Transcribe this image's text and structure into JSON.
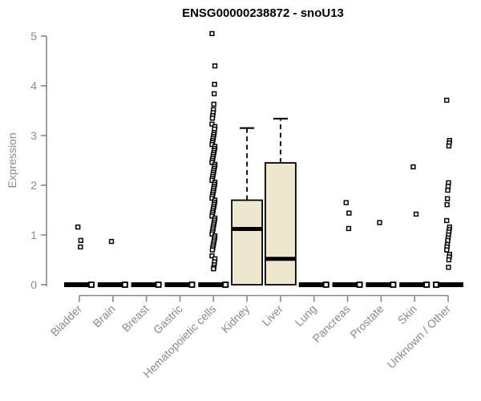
{
  "page": {
    "background": "#ffffff"
  },
  "chart_data": {
    "type": "boxplot",
    "title": "ENSG00000238872 - snoU13",
    "ylabel": "Expression",
    "xlabel": "",
    "ylim": [
      0,
      5
    ],
    "yticks": [
      0,
      1,
      2,
      3,
      4,
      5
    ],
    "grid": false,
    "legend_position": "none",
    "colors": {
      "box_fill": "#ede8cd",
      "box_border": "#000000",
      "median": "#000000",
      "axis": "#888888",
      "tick_label": "#8a8a8a",
      "title": "#000000",
      "outlier_fill": "#ffffff",
      "outlier_border": "#000000"
    },
    "categories": [
      "Bladder",
      "Brain",
      "Breast",
      "Gastric",
      "Hematopoietic cells",
      "Kidney",
      "Liver",
      "Lung",
      "Pancreas",
      "Prostate",
      "Skin",
      "Unknown / Other"
    ],
    "series": [
      {
        "name": "Bladder",
        "collapsed": true,
        "q1": 0,
        "median": 0,
        "q3": 0,
        "whisker_low": 0,
        "whisker_high": 0,
        "notch_side": 1,
        "outliers": [
          1.16,
          0.89,
          0.76
        ]
      },
      {
        "name": "Brain",
        "collapsed": true,
        "q1": 0,
        "median": 0,
        "q3": 0,
        "whisker_low": 0,
        "whisker_high": 0,
        "notch_side": 1,
        "outliers": [
          0.87
        ]
      },
      {
        "name": "Breast",
        "collapsed": true,
        "q1": 0,
        "median": 0,
        "q3": 0,
        "whisker_low": 0,
        "whisker_high": 0,
        "notch_side": 1,
        "outliers": []
      },
      {
        "name": "Gastric",
        "collapsed": true,
        "q1": 0,
        "median": 0,
        "q3": 0,
        "whisker_low": 0,
        "whisker_high": 0,
        "notch_side": 1,
        "outliers": []
      },
      {
        "name": "Hematopoietic cells",
        "collapsed": true,
        "q1": 0,
        "median": 0,
        "q3": 0,
        "whisker_low": 0,
        "whisker_high": 0,
        "notch_side": 1,
        "outliers": [
          5.05,
          4.4,
          4.03,
          3.84,
          3.63,
          3.52,
          3.46,
          3.4,
          3.35,
          3.23,
          3.18,
          3.13,
          3.06,
          3.02,
          2.98,
          2.94,
          2.9,
          2.86,
          2.82,
          2.78,
          2.74,
          2.7,
          2.66,
          2.62,
          2.58,
          2.54,
          2.5,
          2.46,
          2.42,
          2.38,
          2.34,
          2.3,
          2.26,
          2.22,
          2.18,
          2.14,
          2.1,
          2.06,
          2.02,
          1.98,
          1.94,
          1.9,
          1.86,
          1.82,
          1.78,
          1.74,
          1.7,
          1.66,
          1.62,
          1.58,
          1.54,
          1.5,
          1.46,
          1.42,
          1.38,
          1.34,
          1.3,
          1.26,
          1.22,
          1.18,
          1.14,
          1.1,
          1.06,
          1.02,
          0.98,
          0.94,
          0.9,
          0.86,
          0.82,
          0.78,
          0.74,
          0.7,
          0.58,
          0.52,
          0.46,
          0.4,
          0.35,
          0.32
        ]
      },
      {
        "name": "Kidney",
        "collapsed": false,
        "q1": 0,
        "median": 1.12,
        "q3": 1.7,
        "whisker_low": 0,
        "whisker_high": 3.15,
        "notch_side": 0,
        "outliers": []
      },
      {
        "name": "Liver",
        "collapsed": false,
        "q1": 0,
        "median": 0.52,
        "q3": 2.45,
        "whisker_low": 0,
        "whisker_high": 3.34,
        "notch_side": 0,
        "outliers": []
      },
      {
        "name": "Lung",
        "collapsed": true,
        "q1": 0,
        "median": 0,
        "q3": 0,
        "whisker_low": 0,
        "whisker_high": 0,
        "notch_side": 1,
        "outliers": []
      },
      {
        "name": "Pancreas",
        "collapsed": true,
        "q1": 0,
        "median": 0,
        "q3": 0,
        "whisker_low": 0,
        "whisker_high": 0,
        "notch_side": 1,
        "outliers": [
          1.65,
          1.44,
          1.13
        ]
      },
      {
        "name": "Prostate",
        "collapsed": true,
        "q1": 0,
        "median": 0,
        "q3": 0,
        "whisker_low": 0,
        "whisker_high": 0,
        "notch_side": 1,
        "outliers": [
          1.25
        ]
      },
      {
        "name": "Skin",
        "collapsed": true,
        "q1": 0,
        "median": 0,
        "q3": 0,
        "whisker_low": 0,
        "whisker_high": 0,
        "notch_side": 1,
        "outliers": [
          2.37,
          1.42
        ]
      },
      {
        "name": "Unknown / Other",
        "collapsed": true,
        "q1": 0,
        "median": 0,
        "q3": 0,
        "whisker_low": 0,
        "whisker_high": 0,
        "notch_side": -1,
        "outliers": [
          3.71,
          2.9,
          2.85,
          2.79,
          2.05,
          1.98,
          1.9,
          1.73,
          1.61,
          1.29,
          1.16,
          1.11,
          1.06,
          1.0,
          0.94,
          0.89,
          0.81,
          0.76,
          0.7,
          0.61,
          0.56,
          0.5,
          0.35
        ]
      }
    ]
  }
}
